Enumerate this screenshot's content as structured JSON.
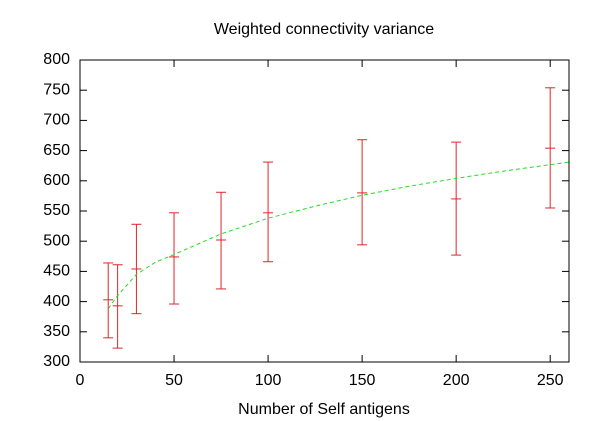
{
  "chart_data": {
    "type": "errorbar",
    "title": "Weighted connectivity variance",
    "x_label": "Number of Self antigens",
    "xlim": [
      0,
      260
    ],
    "ylim": [
      300,
      800
    ],
    "xticks": [
      0,
      50,
      100,
      150,
      200,
      250
    ],
    "yticks": [
      300,
      350,
      400,
      450,
      500,
      550,
      600,
      650,
      700,
      750,
      800
    ],
    "series": [
      {
        "kind": "errorbar",
        "color": "#e0252a",
        "x": [
          15,
          20,
          30,
          50,
          75,
          100,
          150,
          200,
          250
        ],
        "values": [
          403,
          393,
          454,
          474,
          502,
          547,
          580,
          570,
          654
        ],
        "lower": [
          340,
          323,
          380,
          396,
          421,
          466,
          494,
          477,
          555
        ],
        "upper": [
          464,
          461,
          528,
          547,
          581,
          631,
          668,
          664,
          754
        ]
      },
      {
        "kind": "line",
        "color": "#22dd22",
        "dashed": true,
        "x": [
          15,
          20,
          30,
          40,
          50,
          75,
          100,
          125,
          150,
          175,
          200,
          225,
          260
        ],
        "values": [
          388,
          410,
          445,
          465,
          478,
          512,
          538,
          558,
          576,
          591,
          604,
          616,
          631
        ]
      }
    ]
  }
}
